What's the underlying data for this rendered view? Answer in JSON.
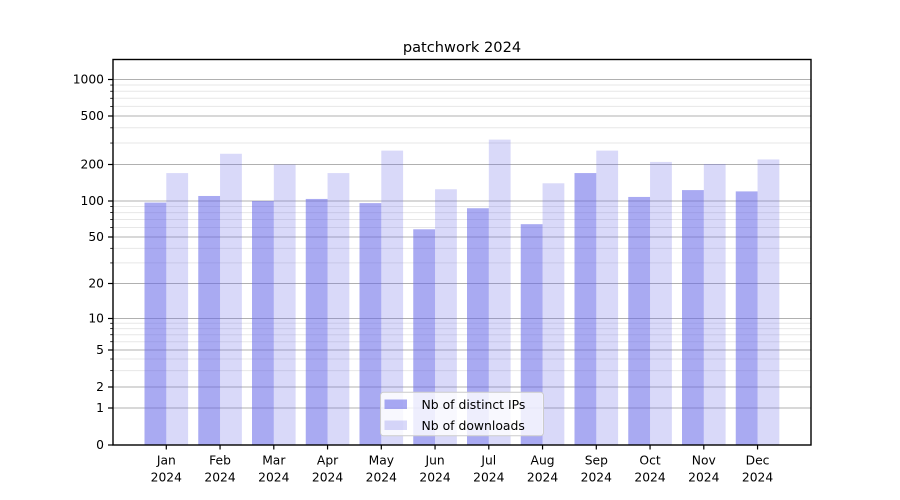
{
  "title": "patchwork 2024",
  "chart_data": {
    "type": "bar",
    "categories": [
      "Jan 2024",
      "Feb 2024",
      "Mar 2024",
      "Apr 2024",
      "May 2024",
      "Jun 2024",
      "Jul 2024",
      "Aug 2024",
      "Sep 2024",
      "Oct 2024",
      "Nov 2024",
      "Dec 2024"
    ],
    "month_labels": [
      "Jan",
      "Feb",
      "Mar",
      "Apr",
      "May",
      "Jun",
      "Jul",
      "Aug",
      "Sep",
      "Oct",
      "Nov",
      "Dec"
    ],
    "year_label": "2024",
    "series": [
      {
        "name": "Nb of distinct IPs",
        "color": "rgba(102,104,232,0.56)",
        "values": [
          97,
          110,
          100,
          104,
          96,
          58,
          87,
          64,
          170,
          108,
          123,
          120
        ]
      },
      {
        "name": "Nb of downloads",
        "color": "rgba(102,104,232,0.25)",
        "values": [
          170,
          245,
          200,
          170,
          260,
          125,
          320,
          140,
          260,
          210,
          202,
          220
        ]
      }
    ],
    "yscale": "asinh-log (symlog-like, includes 0)",
    "yticks": [
      0,
      1,
      2,
      5,
      10,
      20,
      50,
      100,
      200,
      500,
      1000
    ],
    "y_minor_ticks": [
      3,
      4,
      6,
      7,
      8,
      9,
      30,
      40,
      60,
      70,
      80,
      90,
      300,
      400,
      600,
      700,
      800,
      900
    ],
    "ylim": [
      0,
      1000
    ],
    "grid": true,
    "legend_position": "lower center"
  },
  "colors": {
    "bar_ips": "rgba(102,104,232,0.56)",
    "bar_downloads": "rgba(102,104,232,0.25)",
    "grid_major": "#b0b0b0",
    "grid_minor": "#e7e7e7",
    "axis": "#000000",
    "legend_border": "#cccccc",
    "legend_bg": "rgba(255,255,255,0.8)",
    "background": "#ffffff"
  }
}
